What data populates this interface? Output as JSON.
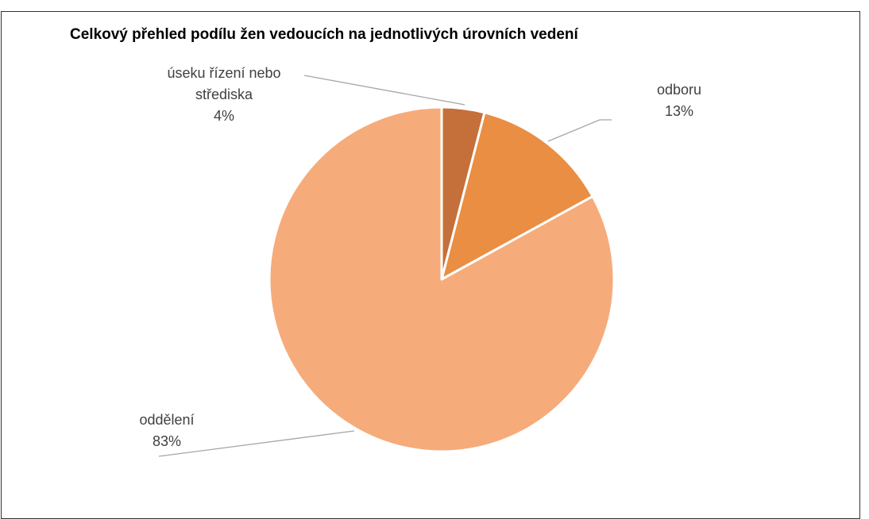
{
  "chart_data": {
    "type": "pie",
    "title": "Celkový přehled podílu žen vedoucích na jednotlivých úrovních vedení",
    "categories": [
      "úseku řízení nebo střediska",
      "odboru",
      "oddělení"
    ],
    "values": [
      4,
      13,
      83
    ],
    "value_labels": [
      "4%",
      "13%",
      "83%"
    ],
    "colors": [
      "#c5703a",
      "#e98e43",
      "#f6ab7a"
    ]
  }
}
